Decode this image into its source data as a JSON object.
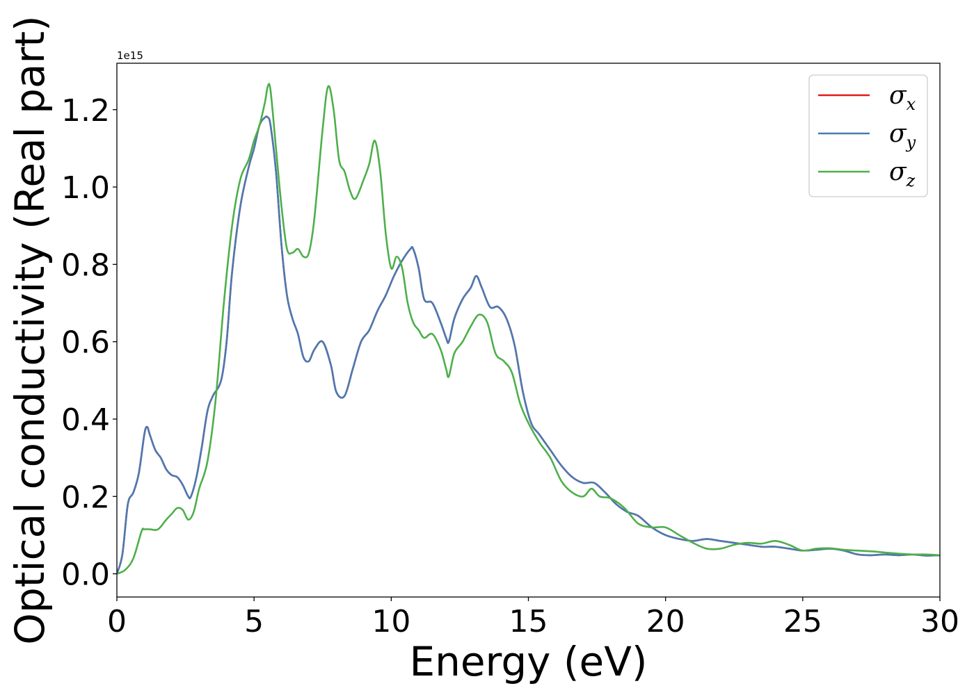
{
  "chart_data": {
    "type": "line",
    "xlabel": "Energy (eV)",
    "ylabel": "Optical conductivity (Real part)",
    "y_offset_label": "1e15",
    "xlim": [
      0,
      30
    ],
    "ylim": [
      -0.06,
      1.32
    ],
    "x_ticks": [
      0,
      5,
      10,
      15,
      20,
      25,
      30
    ],
    "x_tick_labels": [
      "0",
      "5",
      "10",
      "15",
      "20",
      "25",
      "30"
    ],
    "y_ticks": [
      0.0,
      0.2,
      0.4,
      0.6,
      0.8,
      1.0,
      1.2
    ],
    "y_tick_labels": [
      "0.0",
      "0.2",
      "0.4",
      "0.6",
      "0.8",
      "1.0",
      "1.2"
    ],
    "grid": false,
    "legend_position": "top-right",
    "series": [
      {
        "name": "σx",
        "legend_base": "σ",
        "legend_sub": "x",
        "color": "#e41a1c",
        "x": [
          0,
          0.2,
          0.4,
          0.6,
          0.8,
          1.0,
          1.1,
          1.2,
          1.4,
          1.6,
          1.8,
          2.0,
          2.2,
          2.4,
          2.6,
          2.7,
          2.9,
          3.1,
          3.3,
          3.5,
          3.8,
          4.0,
          4.2,
          4.5,
          4.8,
          5.0,
          5.2,
          5.4,
          5.5,
          5.6,
          5.8,
          6.0,
          6.2,
          6.4,
          6.6,
          6.8,
          7.0,
          7.2,
          7.5,
          7.8,
          8.0,
          8.3,
          8.6,
          8.9,
          9.2,
          9.5,
          9.8,
          10.1,
          10.4,
          10.7,
          10.8,
          11.0,
          11.2,
          11.5,
          11.8,
          12.0,
          12.1,
          12.3,
          12.6,
          12.9,
          13.1,
          13.3,
          13.6,
          13.9,
          14.2,
          14.5,
          14.8,
          15.1,
          15.4,
          15.8,
          16.2,
          16.6,
          17.0,
          17.4,
          17.8,
          18.2,
          18.6,
          19.0,
          19.5,
          20.0,
          20.5,
          21.0,
          21.5,
          22.0,
          22.5,
          23.0,
          23.5,
          24.0,
          24.5,
          25.0,
          25.5,
          26.0,
          26.5,
          27.0,
          27.5,
          28.0,
          28.5,
          29.0,
          29.5,
          30.0
        ],
        "y": [
          0.0,
          0.05,
          0.18,
          0.21,
          0.26,
          0.36,
          0.38,
          0.36,
          0.32,
          0.3,
          0.27,
          0.255,
          0.25,
          0.23,
          0.2,
          0.2,
          0.25,
          0.33,
          0.42,
          0.46,
          0.5,
          0.6,
          0.78,
          0.95,
          1.05,
          1.1,
          1.16,
          1.18,
          1.18,
          1.16,
          1.04,
          0.85,
          0.72,
          0.66,
          0.62,
          0.56,
          0.55,
          0.58,
          0.6,
          0.54,
          0.47,
          0.46,
          0.53,
          0.6,
          0.63,
          0.68,
          0.72,
          0.77,
          0.81,
          0.84,
          0.84,
          0.79,
          0.71,
          0.7,
          0.65,
          0.61,
          0.6,
          0.66,
          0.71,
          0.74,
          0.77,
          0.74,
          0.69,
          0.69,
          0.66,
          0.59,
          0.47,
          0.39,
          0.36,
          0.32,
          0.28,
          0.25,
          0.235,
          0.235,
          0.21,
          0.18,
          0.16,
          0.15,
          0.12,
          0.1,
          0.09,
          0.085,
          0.09,
          0.085,
          0.08,
          0.075,
          0.07,
          0.07,
          0.065,
          0.06,
          0.062,
          0.065,
          0.06,
          0.05,
          0.048,
          0.05,
          0.048,
          0.05,
          0.047,
          0.048
        ]
      },
      {
        "name": "σy",
        "legend_base": "σ",
        "legend_sub": "y",
        "color": "#4a7ab3",
        "x": [
          0,
          0.2,
          0.4,
          0.6,
          0.8,
          1.0,
          1.1,
          1.2,
          1.4,
          1.6,
          1.8,
          2.0,
          2.2,
          2.4,
          2.6,
          2.7,
          2.9,
          3.1,
          3.3,
          3.5,
          3.8,
          4.0,
          4.2,
          4.5,
          4.8,
          5.0,
          5.2,
          5.4,
          5.5,
          5.6,
          5.8,
          6.0,
          6.2,
          6.4,
          6.6,
          6.8,
          7.0,
          7.2,
          7.5,
          7.8,
          8.0,
          8.3,
          8.6,
          8.9,
          9.2,
          9.5,
          9.8,
          10.1,
          10.4,
          10.7,
          10.8,
          11.0,
          11.2,
          11.5,
          11.8,
          12.0,
          12.1,
          12.3,
          12.6,
          12.9,
          13.1,
          13.3,
          13.6,
          13.9,
          14.2,
          14.5,
          14.8,
          15.1,
          15.4,
          15.8,
          16.2,
          16.6,
          17.0,
          17.4,
          17.8,
          18.2,
          18.6,
          19.0,
          19.5,
          20.0,
          20.5,
          21.0,
          21.5,
          22.0,
          22.5,
          23.0,
          23.5,
          24.0,
          24.5,
          25.0,
          25.5,
          26.0,
          26.5,
          27.0,
          27.5,
          28.0,
          28.5,
          29.0,
          29.5,
          30.0
        ],
        "y": [
          0.0,
          0.05,
          0.18,
          0.21,
          0.26,
          0.36,
          0.38,
          0.36,
          0.32,
          0.3,
          0.27,
          0.255,
          0.25,
          0.23,
          0.2,
          0.2,
          0.25,
          0.33,
          0.42,
          0.46,
          0.5,
          0.6,
          0.78,
          0.95,
          1.05,
          1.1,
          1.16,
          1.18,
          1.18,
          1.16,
          1.04,
          0.85,
          0.72,
          0.66,
          0.62,
          0.56,
          0.55,
          0.58,
          0.6,
          0.54,
          0.47,
          0.46,
          0.53,
          0.6,
          0.63,
          0.68,
          0.72,
          0.77,
          0.81,
          0.84,
          0.84,
          0.79,
          0.71,
          0.7,
          0.65,
          0.61,
          0.6,
          0.66,
          0.71,
          0.74,
          0.77,
          0.74,
          0.69,
          0.69,
          0.66,
          0.59,
          0.47,
          0.39,
          0.36,
          0.32,
          0.28,
          0.25,
          0.235,
          0.235,
          0.21,
          0.18,
          0.16,
          0.15,
          0.12,
          0.1,
          0.09,
          0.085,
          0.09,
          0.085,
          0.08,
          0.075,
          0.07,
          0.07,
          0.065,
          0.06,
          0.062,
          0.065,
          0.06,
          0.05,
          0.048,
          0.05,
          0.048,
          0.05,
          0.047,
          0.048
        ]
      },
      {
        "name": "σz",
        "legend_base": "σ",
        "legend_sub": "z",
        "color": "#4daf4a",
        "x": [
          0,
          0.3,
          0.6,
          0.9,
          1.0,
          1.2,
          1.5,
          1.8,
          2.0,
          2.2,
          2.4,
          2.6,
          2.8,
          3.0,
          3.3,
          3.6,
          3.9,
          4.2,
          4.5,
          4.8,
          5.0,
          5.2,
          5.4,
          5.5,
          5.6,
          5.8,
          6.0,
          6.2,
          6.4,
          6.6,
          6.8,
          7.0,
          7.2,
          7.5,
          7.7,
          7.9,
          8.1,
          8.3,
          8.5,
          8.7,
          9.0,
          9.2,
          9.4,
          9.6,
          9.8,
          10.0,
          10.2,
          10.4,
          10.6,
          10.8,
          11.0,
          11.2,
          11.5,
          11.8,
          12.0,
          12.1,
          12.3,
          12.6,
          12.9,
          13.2,
          13.5,
          13.8,
          14.1,
          14.4,
          14.7,
          15.0,
          15.4,
          15.8,
          16.2,
          16.6,
          17.0,
          17.3,
          17.6,
          18.0,
          18.5,
          19.0,
          19.5,
          20.0,
          20.5,
          21.0,
          21.5,
          22.0,
          22.5,
          23.0,
          23.5,
          24.0,
          24.5,
          25.0,
          25.5,
          26.0,
          26.5,
          27.0,
          27.5,
          28.0,
          28.5,
          29.0,
          29.5,
          30.0
        ],
        "y": [
          0.0,
          0.01,
          0.04,
          0.11,
          0.115,
          0.115,
          0.115,
          0.14,
          0.155,
          0.17,
          0.165,
          0.14,
          0.16,
          0.22,
          0.29,
          0.45,
          0.7,
          0.9,
          1.02,
          1.07,
          1.12,
          1.16,
          1.22,
          1.26,
          1.25,
          1.1,
          0.95,
          0.84,
          0.83,
          0.84,
          0.82,
          0.83,
          0.92,
          1.15,
          1.26,
          1.2,
          1.07,
          1.04,
          0.99,
          0.97,
          1.02,
          1.06,
          1.12,
          1.04,
          0.88,
          0.79,
          0.82,
          0.79,
          0.7,
          0.65,
          0.63,
          0.61,
          0.62,
          0.58,
          0.53,
          0.51,
          0.57,
          0.6,
          0.64,
          0.67,
          0.65,
          0.57,
          0.55,
          0.52,
          0.44,
          0.39,
          0.34,
          0.3,
          0.24,
          0.21,
          0.2,
          0.22,
          0.2,
          0.195,
          0.17,
          0.13,
          0.12,
          0.12,
          0.1,
          0.08,
          0.065,
          0.065,
          0.075,
          0.08,
          0.078,
          0.085,
          0.075,
          0.06,
          0.065,
          0.066,
          0.062,
          0.06,
          0.058,
          0.055,
          0.052,
          0.05,
          0.05,
          0.048
        ]
      }
    ]
  }
}
